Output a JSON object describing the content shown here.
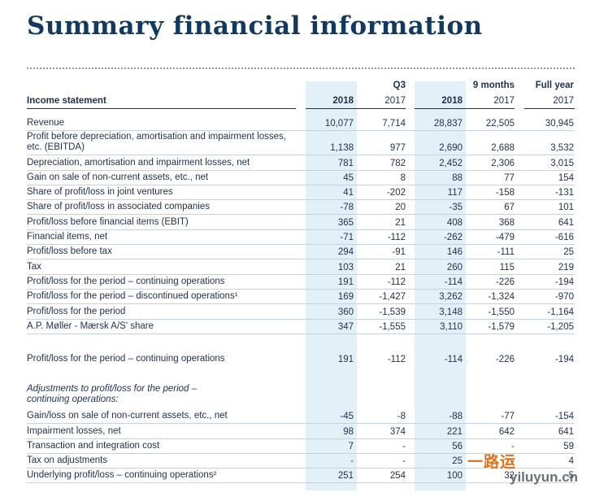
{
  "title": "Summary financial information",
  "header": {
    "row_label": "Income statement",
    "groups": [
      {
        "label": "Q3"
      },
      {
        "label": "9 months"
      },
      {
        "label": "Full year"
      }
    ],
    "years": [
      "2018",
      "2017",
      "2018",
      "2017",
      "2017"
    ]
  },
  "rows": [
    {
      "label": "Revenue",
      "values": [
        "10,077",
        "7,714",
        "28,837",
        "22,505",
        "30,945"
      ]
    },
    {
      "label": "Profit before depreciation, amortisation and impairment losses, etc. (EBITDA)",
      "values": [
        "1,138",
        "977",
        "2,690",
        "2,688",
        "3,532"
      ]
    },
    {
      "label": "Depreciation, amortisation and impairment losses, net",
      "values": [
        "781",
        "782",
        "2,452",
        "2,306",
        "3,015"
      ]
    },
    {
      "label": "Gain on sale of non-current assets, etc., net",
      "values": [
        "45",
        "8",
        "88",
        "77",
        "154"
      ]
    },
    {
      "label": "Share of profit/loss in joint ventures",
      "values": [
        "41",
        "-202",
        "117",
        "-158",
        "-131"
      ]
    },
    {
      "label": "Share of profit/loss in associated companies",
      "values": [
        "-78",
        "20",
        "-35",
        "67",
        "101"
      ]
    },
    {
      "label": "Profit/loss before financial items (EBIT)",
      "values": [
        "365",
        "21",
        "408",
        "368",
        "641"
      ]
    },
    {
      "label": "Financial items, net",
      "values": [
        "-71",
        "-112",
        "-262",
        "-479",
        "-616"
      ]
    },
    {
      "label": "Profit/loss before tax",
      "values": [
        "294",
        "-91",
        "146",
        "-111",
        "25"
      ]
    },
    {
      "label": "Tax",
      "values": [
        "103",
        "21",
        "260",
        "115",
        "219"
      ]
    },
    {
      "label": "Profit/loss for the period – continuing operations",
      "values": [
        "191",
        "-112",
        "-114",
        "-226",
        "-194"
      ]
    },
    {
      "label": "Profit/loss for the period – discontinued operations¹",
      "values": [
        "169",
        "-1,427",
        "3,262",
        "-1,324",
        "-970"
      ]
    },
    {
      "label": "Profit/loss for the period",
      "values": [
        "360",
        "-1,539",
        "3,148",
        "-1,550",
        "-1,164"
      ]
    },
    {
      "label": "A.P. Møller - Mærsk A/S' share",
      "values": [
        "347",
        "-1,555",
        "3,110",
        "-1,579",
        "-1,205"
      ]
    }
  ],
  "continuing": {
    "label": "Profit/loss for the period – continuing operations",
    "values": [
      "191",
      "-112",
      "-114",
      "-226",
      "-194"
    ]
  },
  "adjustments_heading": "Adjustments to profit/loss for the period – continuing operations:",
  "adjustments": [
    {
      "label": "Gain/loss on sale of non-current assets, etc., net",
      "values": [
        "-45",
        "-8",
        "-88",
        "-77",
        "-154"
      ]
    },
    {
      "label": "Impairment losses, net",
      "values": [
        "98",
        "374",
        "221",
        "642",
        "641"
      ]
    },
    {
      "label": "Transaction and integration cost",
      "values": [
        "7",
        "-",
        "56",
        "-",
        "59"
      ]
    },
    {
      "label": "Tax on adjustments",
      "values": [
        "-",
        "-",
        "25",
        "-",
        "4"
      ]
    },
    {
      "label": "Underlying profit/loss – continuing operations²",
      "values": [
        "251",
        "254",
        "100",
        "32",
        "5"
      ]
    }
  ],
  "watermark": {
    "cn": "一路运",
    "en": "yiluyun.cn"
  }
}
